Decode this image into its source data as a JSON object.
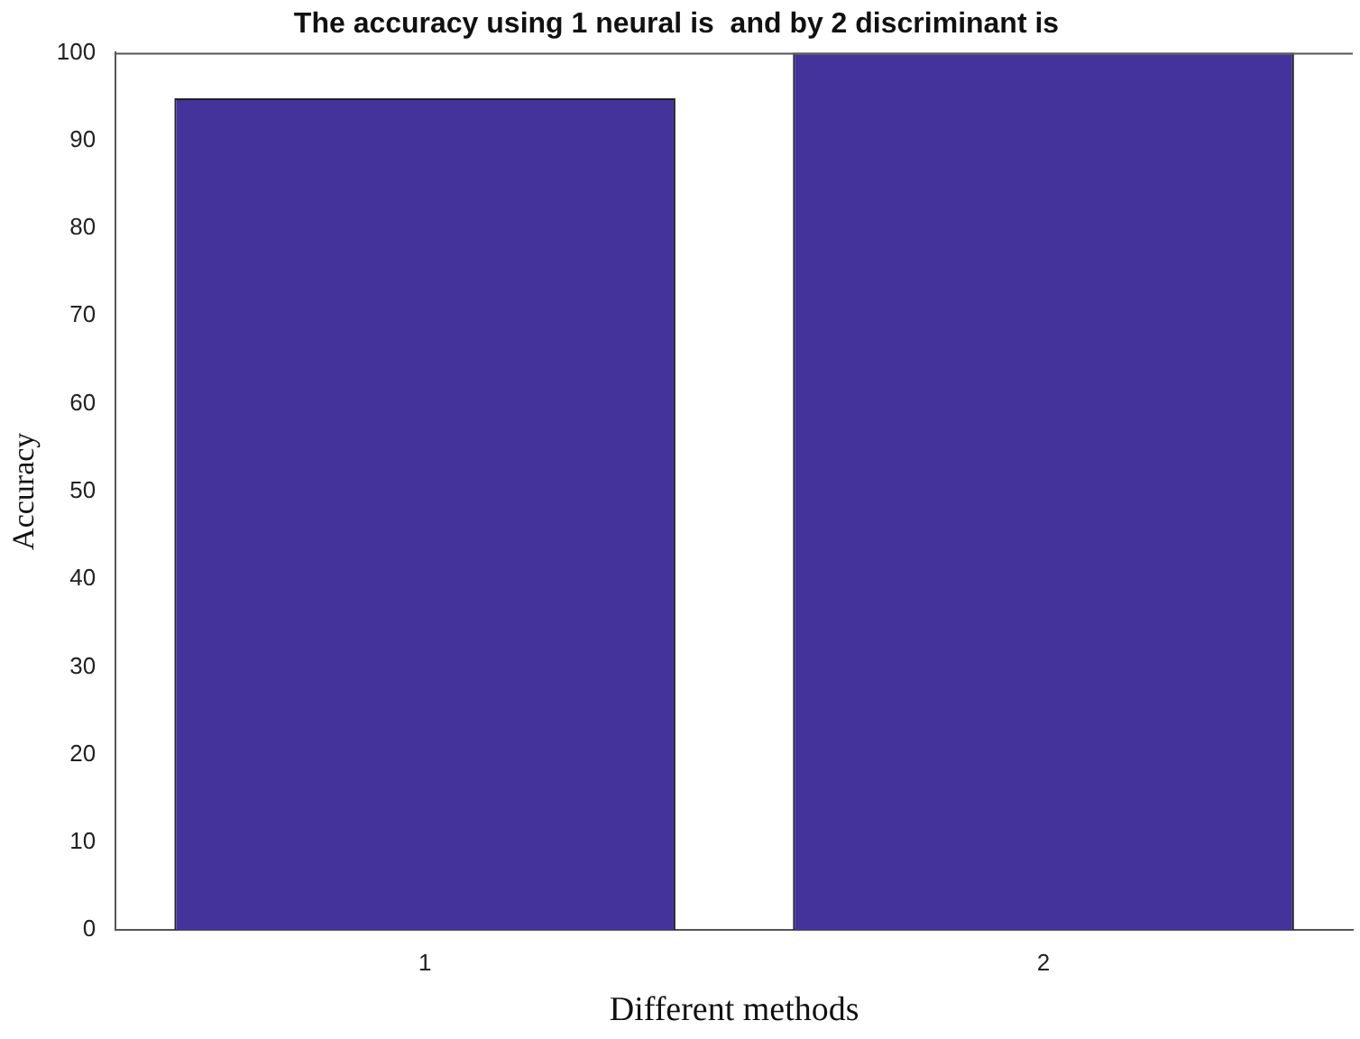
{
  "chart_data": {
    "type": "bar",
    "title": "The accuracy using 1 neural is  and by 2 discriminant is",
    "xlabel": "Different methods",
    "ylabel": "Accuracy",
    "categories": [
      "1",
      "2"
    ],
    "values": [
      94.8,
      100
    ],
    "color": "#43339a",
    "ylim": [
      0,
      100
    ],
    "yticks": [
      0,
      10,
      20,
      30,
      40,
      50,
      60,
      70,
      80,
      90,
      100
    ],
    "grid": false,
    "legend": false
  }
}
